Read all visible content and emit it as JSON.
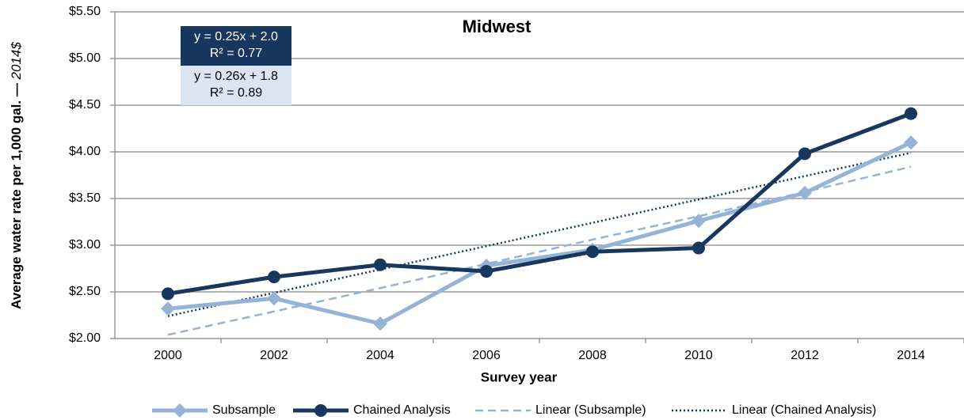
{
  "chart_data": {
    "type": "line",
    "title": "Midwest",
    "x_label": "Survey year",
    "y_label": "Average water rate per 1,000 gal. —",
    "y_label_unit": "2014$",
    "categories": [
      "2000",
      "2002",
      "2004",
      "2006",
      "2008",
      "2010",
      "2012",
      "2014"
    ],
    "series": [
      {
        "name": "Subsample",
        "color": "#95b3d7",
        "marker": "diamond",
        "dash": "solid",
        "values": [
          2.32,
          2.43,
          2.16,
          2.78,
          2.95,
          3.26,
          3.56,
          4.1
        ]
      },
      {
        "name": "Chained Analysis",
        "color": "#17375e",
        "marker": "circle",
        "dash": "solid",
        "values": [
          2.48,
          2.66,
          2.79,
          2.72,
          2.93,
          2.97,
          3.98,
          4.41
        ]
      },
      {
        "name": "Linear (Subsample)",
        "color": "#95b3d7",
        "marker": "none",
        "dash": "dash",
        "values": [
          2.04,
          2.29,
          2.54,
          2.8,
          3.06,
          3.31,
          3.57,
          3.84
        ]
      },
      {
        "name": "Linear (Chained Analysis)",
        "color": "#17375e",
        "marker": "none",
        "dash": "dot",
        "values": [
          2.24,
          2.49,
          2.74,
          2.99,
          3.24,
          3.49,
          3.74,
          3.99
        ]
      }
    ],
    "annotations": [
      {
        "lines": [
          "y = 0.25x + 2.0",
          "R² = 0.77"
        ],
        "color": "#17375e",
        "text_color": "#ffffff"
      },
      {
        "lines": [
          "y = 0.26x + 1.8",
          "R² = 0.89"
        ],
        "color": "#dbe5f1",
        "text_color": "#000000"
      }
    ],
    "ylim": [
      2.0,
      5.5
    ],
    "yticks": [
      {
        "value": 2.0,
        "label": "$2.00"
      },
      {
        "value": 2.5,
        "label": "$2.50"
      },
      {
        "value": 3.0,
        "label": "$3.00"
      },
      {
        "value": 3.5,
        "label": "$3.50"
      },
      {
        "value": 4.0,
        "label": "$4.00"
      },
      {
        "value": 4.5,
        "label": "$4.50"
      },
      {
        "value": 5.0,
        "label": "$5.00"
      },
      {
        "value": 5.5,
        "label": "$5.50"
      }
    ],
    "grid": true,
    "legend": "bottom"
  }
}
